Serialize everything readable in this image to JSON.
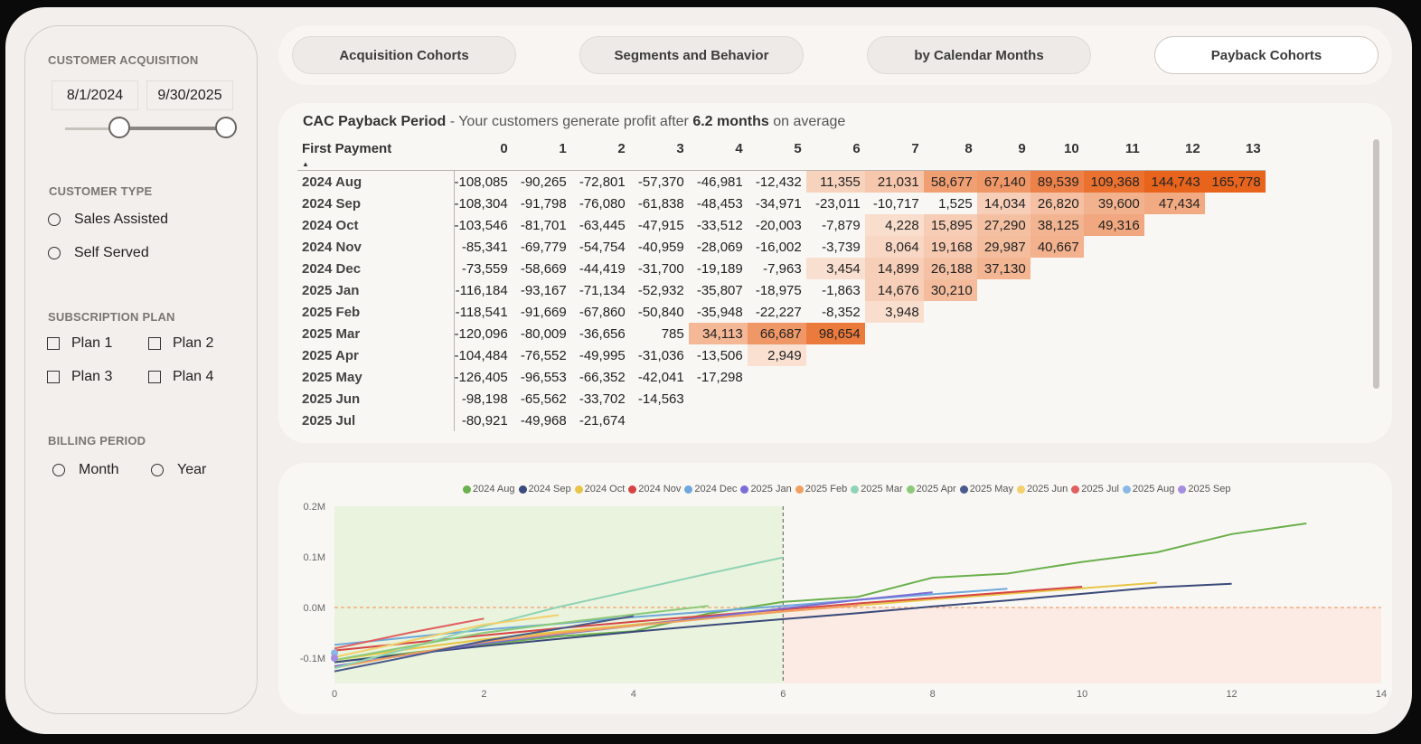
{
  "sidebar": {
    "acquisition_title": "CUSTOMER ACQUISITION",
    "date_start": "8/1/2024",
    "date_end": "9/30/2025",
    "customer_type_title": "CUSTOMER TYPE",
    "customer_types": [
      "Sales Assisted",
      "Self Served"
    ],
    "subscription_title": "SUBSCRIPTION PLAN",
    "plans": [
      "Plan 1",
      "Plan 2",
      "Plan 3",
      "Plan 4"
    ],
    "billing_title": "BILLING PERIOD",
    "billing_options": [
      "Month",
      "Year"
    ]
  },
  "tabs": [
    {
      "label": "Acquisition Cohorts",
      "active": false
    },
    {
      "label": "Segments and Behavior",
      "active": false
    },
    {
      "label": "by Calendar Months",
      "active": false
    },
    {
      "label": "Payback Cohorts",
      "active": true
    }
  ],
  "table": {
    "title": "CAC Payback Period",
    "subtitle_pre": " - Your customers generate profit after ",
    "subtitle_value": "6.2 months",
    "subtitle_post": " on average",
    "row_header": "First Payment",
    "columns": [
      "0",
      "1",
      "2",
      "3",
      "4",
      "5",
      "6",
      "7",
      "8",
      "9",
      "10",
      "11",
      "12",
      "13"
    ],
    "rows": [
      {
        "label": "2024 Aug",
        "values": [
          "-108,085",
          "-90,265",
          "-72,801",
          "-57,370",
          "-46,981",
          "-12,432",
          "11,355",
          "21,031",
          "58,677",
          "67,140",
          "89,539",
          "109,368",
          "144,743",
          "165,778"
        ]
      },
      {
        "label": "2024 Sep",
        "values": [
          "-108,304",
          "-91,798",
          "-76,080",
          "-61,838",
          "-48,453",
          "-34,971",
          "-23,011",
          "-10,717",
          "1,525",
          "14,034",
          "26,820",
          "39,600",
          "47,434"
        ]
      },
      {
        "label": "2024 Oct",
        "values": [
          "-103,546",
          "-81,701",
          "-63,445",
          "-47,915",
          "-33,512",
          "-20,003",
          "-7,879",
          "4,228",
          "15,895",
          "27,290",
          "38,125",
          "49,316"
        ]
      },
      {
        "label": "2024 Nov",
        "values": [
          "-85,341",
          "-69,779",
          "-54,754",
          "-40,959",
          "-28,069",
          "-16,002",
          "-3,739",
          "8,064",
          "19,168",
          "29,987",
          "40,667"
        ]
      },
      {
        "label": "2024 Dec",
        "values": [
          "-73,559",
          "-58,669",
          "-44,419",
          "-31,700",
          "-19,189",
          "-7,963",
          "3,454",
          "14,899",
          "26,188",
          "37,130"
        ]
      },
      {
        "label": "2025 Jan",
        "values": [
          "-116,184",
          "-93,167",
          "-71,134",
          "-52,932",
          "-35,807",
          "-18,975",
          "-1,863",
          "14,676",
          "30,210"
        ]
      },
      {
        "label": "2025 Feb",
        "values": [
          "-118,541",
          "-91,669",
          "-67,860",
          "-50,840",
          "-35,948",
          "-22,227",
          "-8,352",
          "3,948"
        ]
      },
      {
        "label": "2025 Mar",
        "values": [
          "-120,096",
          "-80,009",
          "-36,656",
          "785",
          "34,113",
          "66,687",
          "98,654"
        ]
      },
      {
        "label": "2025 Apr",
        "values": [
          "-104,484",
          "-76,552",
          "-49,995",
          "-31,036",
          "-13,506",
          "2,949"
        ]
      },
      {
        "label": "2025 May",
        "values": [
          "-126,405",
          "-96,553",
          "-66,352",
          "-42,041",
          "-17,298"
        ]
      },
      {
        "label": "2025 Jun",
        "values": [
          "-98,198",
          "-65,562",
          "-33,702",
          "-14,563"
        ]
      },
      {
        "label": "2025 Jul",
        "values": [
          "-80,921",
          "-49,968",
          "-21,674"
        ]
      }
    ]
  },
  "chart_data": {
    "type": "line",
    "xlim": [
      0,
      14
    ],
    "ylim": [
      -0.15,
      0.2
    ],
    "x_ticks": [
      "0",
      "2",
      "4",
      "6",
      "8",
      "10",
      "12",
      "14"
    ],
    "y_ticks": [
      "0.2M",
      "0.1M",
      "0.0M",
      "-0.1M"
    ],
    "y_tick_values": [
      0.2,
      0.1,
      0.0,
      -0.1
    ],
    "x_tick_values": [
      0,
      2,
      4,
      6,
      8,
      10,
      12,
      14
    ],
    "avg_payback_marker": 6,
    "legend_position": "top",
    "series": [
      {
        "name": "2024 Aug",
        "color": "#6ab04c",
        "values": [
          -0.108,
          -0.09,
          -0.073,
          -0.057,
          -0.047,
          -0.012,
          0.011,
          0.021,
          0.059,
          0.067,
          0.09,
          0.109,
          0.145,
          0.166
        ]
      },
      {
        "name": "2024 Sep",
        "color": "#3b4a7a",
        "values": [
          -0.108,
          -0.092,
          -0.076,
          -0.062,
          -0.048,
          -0.035,
          -0.023,
          -0.011,
          0.002,
          0.014,
          0.027,
          0.04,
          0.047
        ]
      },
      {
        "name": "2024 Oct",
        "color": "#e8c547",
        "values": [
          -0.104,
          -0.082,
          -0.063,
          -0.048,
          -0.034,
          -0.02,
          -0.008,
          0.004,
          0.016,
          0.027,
          0.038,
          0.049
        ]
      },
      {
        "name": "2024 Nov",
        "color": "#d64545",
        "values": [
          -0.085,
          -0.07,
          -0.055,
          -0.041,
          -0.028,
          -0.016,
          -0.004,
          0.008,
          0.019,
          0.03,
          0.041
        ]
      },
      {
        "name": "2024 Dec",
        "color": "#6fa8dc",
        "values": [
          -0.074,
          -0.059,
          -0.044,
          -0.032,
          -0.019,
          -0.008,
          0.003,
          0.015,
          0.026,
          0.037
        ]
      },
      {
        "name": "2025 Jan",
        "color": "#7b6ed6",
        "values": [
          -0.116,
          -0.093,
          -0.071,
          -0.053,
          -0.036,
          -0.019,
          -0.002,
          0.015,
          0.03
        ]
      },
      {
        "name": "2025 Feb",
        "color": "#f0a060",
        "values": [
          -0.119,
          -0.092,
          -0.068,
          -0.051,
          -0.036,
          -0.022,
          -0.008,
          0.004
        ]
      },
      {
        "name": "2025 Mar",
        "color": "#8fd3b5",
        "values": [
          -0.12,
          -0.08,
          -0.037,
          0.001,
          0.034,
          0.067,
          0.099
        ]
      },
      {
        "name": "2025 Apr",
        "color": "#8cc97a",
        "values": [
          -0.104,
          -0.077,
          -0.05,
          -0.031,
          -0.014,
          0.003
        ]
      },
      {
        "name": "2025 May",
        "color": "#4a5a8a",
        "values": [
          -0.126,
          -0.097,
          -0.066,
          -0.042,
          -0.017
        ]
      },
      {
        "name": "2025 Jun",
        "color": "#f2d06b",
        "values": [
          -0.098,
          -0.066,
          -0.034,
          -0.015
        ]
      },
      {
        "name": "2025 Jul",
        "color": "#e06060",
        "values": [
          -0.081,
          -0.05,
          -0.022
        ]
      },
      {
        "name": "2025 Aug",
        "color": "#8ab8e6",
        "values": [
          -0.09
        ]
      },
      {
        "name": "2025 Sep",
        "color": "#a58de0",
        "values": [
          -0.1
        ]
      }
    ]
  }
}
